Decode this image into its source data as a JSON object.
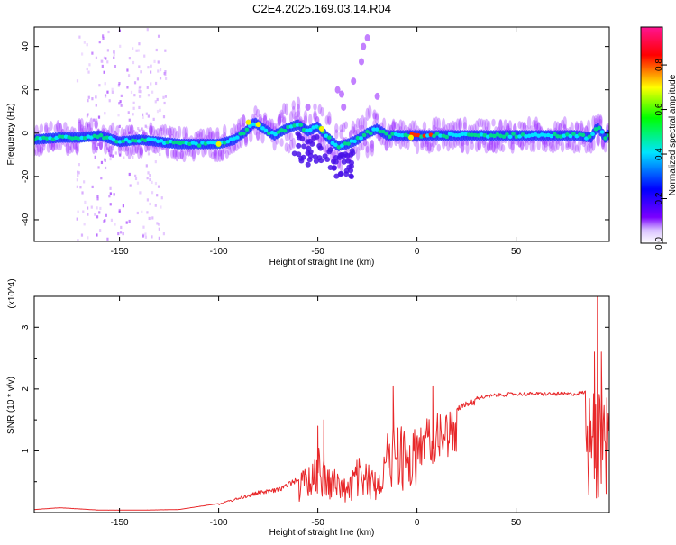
{
  "title": "C2E4.2025.169.03.14.R04",
  "colors": {
    "snr_line": "#e8282a",
    "spectrum_ridge": "#00d98a",
    "spectrum_core": "#1a33ff",
    "spectrum_haze": "#9b2bff",
    "colorbar_stops": [
      "#ffffff",
      "#7a00ff",
      "#0000ff",
      "#00e5ff",
      "#00ff00",
      "#ffff00",
      "#ff0000",
      "#ff1493"
    ]
  },
  "chart_data": [
    {
      "type": "heatmap",
      "xlabel": "Height of straight line (km)",
      "ylabel": "Frequency (Hz)",
      "xlim": [
        -193,
        97
      ],
      "ylim": [
        -50,
        49
      ],
      "x_ticks": [
        -150,
        -100,
        -50,
        0,
        50
      ],
      "y_ticks": [
        -40,
        -20,
        0,
        20,
        40
      ],
      "colorbar": {
        "label": "Normalized spectral amplitude",
        "range": [
          0,
          0.97
        ],
        "ticks": [
          0.0,
          0.2,
          0.4,
          0.6,
          0.8
        ],
        "tick_labels": [
          "0.0",
          "0.2",
          "0.4",
          "0.6",
          "0.8"
        ]
      },
      "ridge": {
        "x": [
          -193,
          -180,
          -170,
          -160,
          -150,
          -140,
          -130,
          -120,
          -110,
          -100,
          -92,
          -86,
          -82,
          -77,
          -72,
          -66,
          -60,
          -55,
          -50,
          -45,
          -40,
          -35,
          -30,
          -25,
          -20,
          -15,
          -10,
          -5,
          0,
          10,
          20,
          30,
          40,
          50,
          60,
          70,
          80,
          88,
          91,
          95,
          97
        ],
        "y": [
          -3,
          -2,
          -2,
          -1,
          -4,
          -3,
          -4,
          -5,
          -5,
          -5,
          -3,
          1,
          5,
          2,
          -1,
          2,
          4,
          1,
          3,
          -2,
          -6,
          -5,
          -3,
          0,
          2,
          -1,
          -1,
          -1,
          -1,
          -1,
          -1,
          -1,
          -1,
          -1,
          -1,
          -1,
          -1,
          -2,
          3,
          -2,
          0
        ]
      }
    },
    {
      "type": "line",
      "xlabel": "Height of straight line (km)",
      "ylabel": "SNR (10 * v/v)",
      "y_multiplier": "(x10^4)",
      "xlim": [
        -193,
        97
      ],
      "ylim": [
        0,
        3.5
      ],
      "x_ticks": [
        -150,
        -100,
        -50,
        0,
        50
      ],
      "y_ticks": [
        1,
        2,
        3
      ],
      "envelope": {
        "x": [
          -193,
          -180,
          -160,
          -140,
          -120,
          -110,
          -100,
          -90,
          -80,
          -70,
          -60,
          -55,
          -50,
          -45,
          -40,
          -35,
          -30,
          -25,
          -20,
          -15,
          -10,
          -5,
          0,
          5,
          10,
          20,
          30,
          40,
          50,
          60,
          70,
          80,
          85,
          88,
          90,
          91,
          92,
          93,
          95,
          97
        ],
        "y": [
          0.05,
          0.08,
          0.04,
          0.04,
          0.05,
          0.1,
          0.15,
          0.25,
          0.35,
          0.4,
          0.6,
          0.85,
          1.1,
          0.8,
          0.7,
          0.55,
          0.9,
          0.8,
          0.75,
          1.3,
          1.6,
          1.3,
          1.4,
          1.55,
          1.6,
          1.75,
          1.85,
          1.9,
          1.92,
          1.92,
          1.92,
          1.92,
          1.95,
          1.95,
          2.3,
          1.0,
          2.1,
          1.7,
          1.9,
          1.95
        ]
      },
      "spikes": [
        {
          "x": 91,
          "y": 3.5
        },
        {
          "x": 91.5,
          "y": 0.25
        },
        {
          "x": 89.5,
          "y": 2.6
        },
        {
          "x": 93,
          "y": 2.6
        },
        {
          "x": -50,
          "y": 1.4
        },
        {
          "x": -47,
          "y": 1.5
        },
        {
          "x": -12,
          "y": 2.05
        },
        {
          "x": 8,
          "y": 2.05
        }
      ]
    }
  ]
}
